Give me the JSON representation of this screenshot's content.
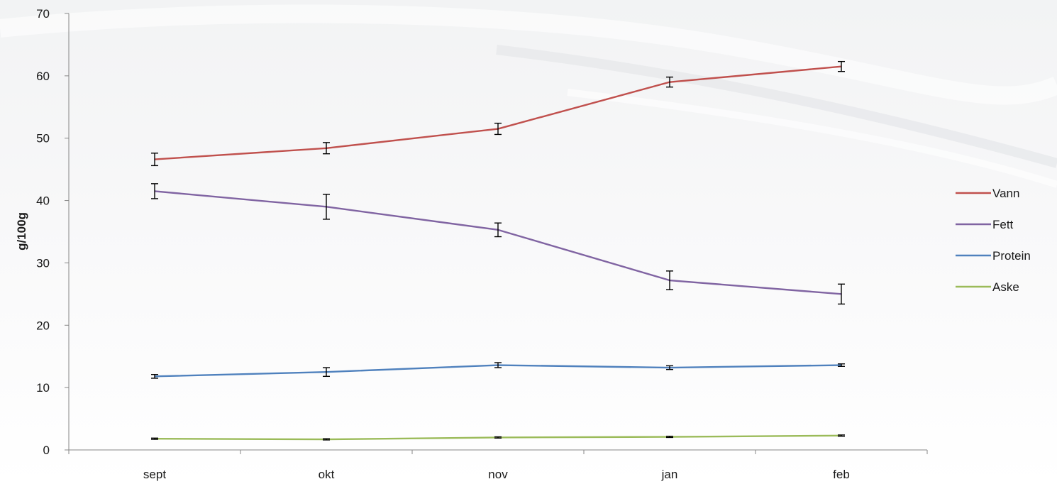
{
  "chart_data": {
    "type": "line",
    "categories": [
      "sept",
      "okt",
      "nov",
      "jan",
      "feb"
    ],
    "ylabel": "g/100g",
    "ylim": [
      0,
      70
    ],
    "yticks": [
      0,
      10,
      20,
      30,
      40,
      50,
      60,
      70
    ],
    "legend_position": "right",
    "grid": false,
    "series": [
      {
        "name": "Vann",
        "color": "#c0504d",
        "values": [
          46.6,
          48.4,
          51.5,
          59.0,
          61.5
        ],
        "errors": [
          1.0,
          0.9,
          0.9,
          0.8,
          0.8
        ]
      },
      {
        "name": "Fett",
        "color": "#8064a2",
        "values": [
          41.5,
          39.0,
          35.3,
          27.2,
          25.0
        ],
        "errors": [
          1.2,
          2.0,
          1.1,
          1.5,
          1.6
        ]
      },
      {
        "name": "Protein",
        "color": "#4f81bd",
        "values": [
          11.8,
          12.5,
          13.6,
          13.2,
          13.6
        ],
        "errors": [
          0.3,
          0.7,
          0.4,
          0.3,
          0.2
        ]
      },
      {
        "name": "Aske",
        "color": "#9bbb59",
        "values": [
          1.8,
          1.7,
          2.0,
          2.1,
          2.3
        ],
        "errors": [
          0.1,
          0.1,
          0.1,
          0.1,
          0.1
        ]
      }
    ]
  }
}
